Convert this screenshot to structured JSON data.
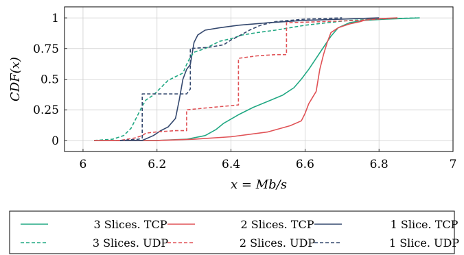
{
  "chart_data": {
    "type": "line",
    "title": "",
    "xlabel": "x = Mb/s",
    "ylabel": "CDF(x)",
    "xlim": [
      5.95,
      7.0
    ],
    "ylim": [
      -0.09,
      1.09
    ],
    "xticks": [
      6,
      6.2,
      6.4,
      6.6,
      6.8,
      7
    ],
    "xtick_labels": [
      "6",
      "6.2",
      "6.4",
      "6.6",
      "6.8",
      "7"
    ],
    "yticks": [
      0,
      0.25,
      0.5,
      0.75,
      1
    ],
    "ytick_labels": [
      "0",
      "0.25",
      "0.5",
      "0.75",
      "1"
    ],
    "grid": true,
    "legend_position": "below",
    "series": [
      {
        "name": "3 Slices. TCP",
        "color": "#21a883",
        "dash": "solid",
        "points": [
          [
            6.03,
            0
          ],
          [
            6.2,
            0
          ],
          [
            6.28,
            0.01
          ],
          [
            6.33,
            0.04
          ],
          [
            6.36,
            0.09
          ],
          [
            6.38,
            0.14
          ],
          [
            6.42,
            0.21
          ],
          [
            6.46,
            0.27
          ],
          [
            6.5,
            0.32
          ],
          [
            6.54,
            0.37
          ],
          [
            6.57,
            0.43
          ],
          [
            6.59,
            0.5
          ],
          [
            6.61,
            0.58
          ],
          [
            6.63,
            0.67
          ],
          [
            6.65,
            0.76
          ],
          [
            6.67,
            0.85
          ],
          [
            6.69,
            0.92
          ],
          [
            6.72,
            0.96
          ],
          [
            6.76,
            0.98
          ],
          [
            6.82,
            0.99
          ],
          [
            6.91,
            1.0
          ]
        ]
      },
      {
        "name": "2 Slices. TCP",
        "color": "#e05256",
        "dash": "solid",
        "points": [
          [
            6.03,
            0
          ],
          [
            6.2,
            0
          ],
          [
            6.3,
            0.01
          ],
          [
            6.4,
            0.03
          ],
          [
            6.5,
            0.07
          ],
          [
            6.56,
            0.12
          ],
          [
            6.59,
            0.16
          ],
          [
            6.6,
            0.22
          ],
          [
            6.61,
            0.3
          ],
          [
            6.63,
            0.4
          ],
          [
            6.64,
            0.58
          ],
          [
            6.65,
            0.7
          ],
          [
            6.66,
            0.8
          ],
          [
            6.67,
            0.88
          ],
          [
            6.69,
            0.92
          ],
          [
            6.72,
            0.95
          ],
          [
            6.75,
            0.97
          ],
          [
            6.77,
            0.99
          ],
          [
            6.85,
            1.0
          ]
        ]
      },
      {
        "name": "1 Slice. TCP",
        "color": "#34486e",
        "dash": "solid",
        "points": [
          [
            6.1,
            0
          ],
          [
            6.16,
            0
          ],
          [
            6.19,
            0.04
          ],
          [
            6.21,
            0.08
          ],
          [
            6.23,
            0.11
          ],
          [
            6.25,
            0.18
          ],
          [
            6.26,
            0.33
          ],
          [
            6.27,
            0.5
          ],
          [
            6.28,
            0.58
          ],
          [
            6.29,
            0.62
          ],
          [
            6.3,
            0.8
          ],
          [
            6.31,
            0.86
          ],
          [
            6.32,
            0.88
          ],
          [
            6.33,
            0.9
          ],
          [
            6.37,
            0.92
          ],
          [
            6.42,
            0.94
          ],
          [
            6.5,
            0.96
          ],
          [
            6.6,
            0.98
          ],
          [
            6.7,
            0.99
          ],
          [
            6.8,
            1.0
          ]
        ]
      },
      {
        "name": "3 Slices. UDP",
        "color": "#21a883",
        "dash": "dashed",
        "points": [
          [
            6.03,
            0
          ],
          [
            6.08,
            0.01
          ],
          [
            6.11,
            0.04
          ],
          [
            6.13,
            0.1
          ],
          [
            6.14,
            0.16
          ],
          [
            6.15,
            0.22
          ],
          [
            6.16,
            0.28
          ],
          [
            6.17,
            0.33
          ],
          [
            6.19,
            0.37
          ],
          [
            6.21,
            0.43
          ],
          [
            6.23,
            0.49
          ],
          [
            6.25,
            0.52
          ],
          [
            6.27,
            0.55
          ],
          [
            6.28,
            0.62
          ],
          [
            6.29,
            0.68
          ],
          [
            6.3,
            0.72
          ],
          [
            6.33,
            0.75
          ],
          [
            6.35,
            0.78
          ],
          [
            6.37,
            0.81
          ],
          [
            6.4,
            0.83
          ],
          [
            6.43,
            0.86
          ],
          [
            6.47,
            0.88
          ],
          [
            6.52,
            0.9
          ],
          [
            6.56,
            0.92
          ],
          [
            6.6,
            0.94
          ],
          [
            6.66,
            0.96
          ],
          [
            6.72,
            0.98
          ],
          [
            6.8,
            0.99
          ],
          [
            6.9,
            1.0
          ]
        ]
      },
      {
        "name": "2 Slices. UDP",
        "color": "#e05256",
        "dash": "dashed",
        "points": [
          [
            6.03,
            0
          ],
          [
            6.1,
            0
          ],
          [
            6.14,
            0.02
          ],
          [
            6.16,
            0.04
          ],
          [
            6.17,
            0.06
          ],
          [
            6.2,
            0.07
          ],
          [
            6.25,
            0.08
          ],
          [
            6.28,
            0.08
          ],
          [
            6.28,
            0.25
          ],
          [
            6.35,
            0.27
          ],
          [
            6.42,
            0.29
          ],
          [
            6.42,
            0.67
          ],
          [
            6.47,
            0.69
          ],
          [
            6.52,
            0.7
          ],
          [
            6.55,
            0.7
          ],
          [
            6.55,
            0.96
          ],
          [
            6.65,
            0.97
          ],
          [
            6.75,
            0.98
          ],
          [
            6.85,
            1.0
          ]
        ]
      },
      {
        "name": "1 Slice. UDP",
        "color": "#34486e",
        "dash": "dashed",
        "points": [
          [
            6.1,
            0
          ],
          [
            6.15,
            0.01
          ],
          [
            6.16,
            0.02
          ],
          [
            6.16,
            0.38
          ],
          [
            6.2,
            0.38
          ],
          [
            6.25,
            0.38
          ],
          [
            6.28,
            0.38
          ],
          [
            6.29,
            0.42
          ],
          [
            6.29,
            0.75
          ],
          [
            6.34,
            0.76
          ],
          [
            6.38,
            0.78
          ],
          [
            6.4,
            0.82
          ],
          [
            6.42,
            0.85
          ],
          [
            6.45,
            0.9
          ],
          [
            6.48,
            0.94
          ],
          [
            6.52,
            0.97
          ],
          [
            6.6,
            0.99
          ],
          [
            6.7,
            1.0
          ]
        ]
      }
    ]
  }
}
